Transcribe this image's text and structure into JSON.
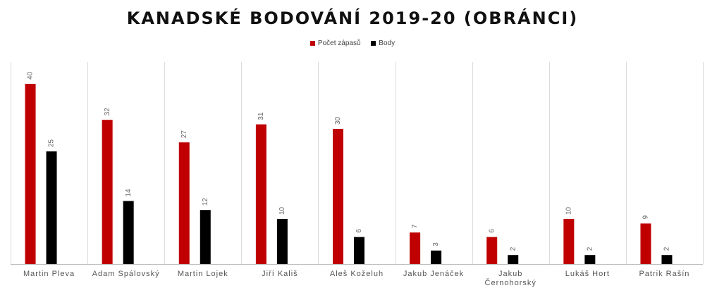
{
  "chart_data": {
    "type": "bar",
    "title": "KANADSKÉ BODOVÁNÍ 2019-20 (OBRÁNCI)",
    "legend_position": "top-center",
    "grid": false,
    "ylim": [
      0,
      45
    ],
    "categories": [
      "Martin Pleva",
      "Adam Spálovský",
      "Martin Lojek",
      "Jiří Kališ",
      "Aleš Koželuh",
      "Jakub Jenáček",
      "Jakub Černohorský",
      "Lukáš Hort",
      "Patrik Rašín"
    ],
    "series": [
      {
        "name": "Počet zápasů",
        "color": "#c00000",
        "values": [
          40,
          32,
          27,
          31,
          30,
          7,
          6,
          10,
          9
        ]
      },
      {
        "name": "Body",
        "color": "#000000",
        "values": [
          25,
          14,
          12,
          10,
          6,
          3,
          2,
          2,
          2
        ]
      }
    ]
  }
}
